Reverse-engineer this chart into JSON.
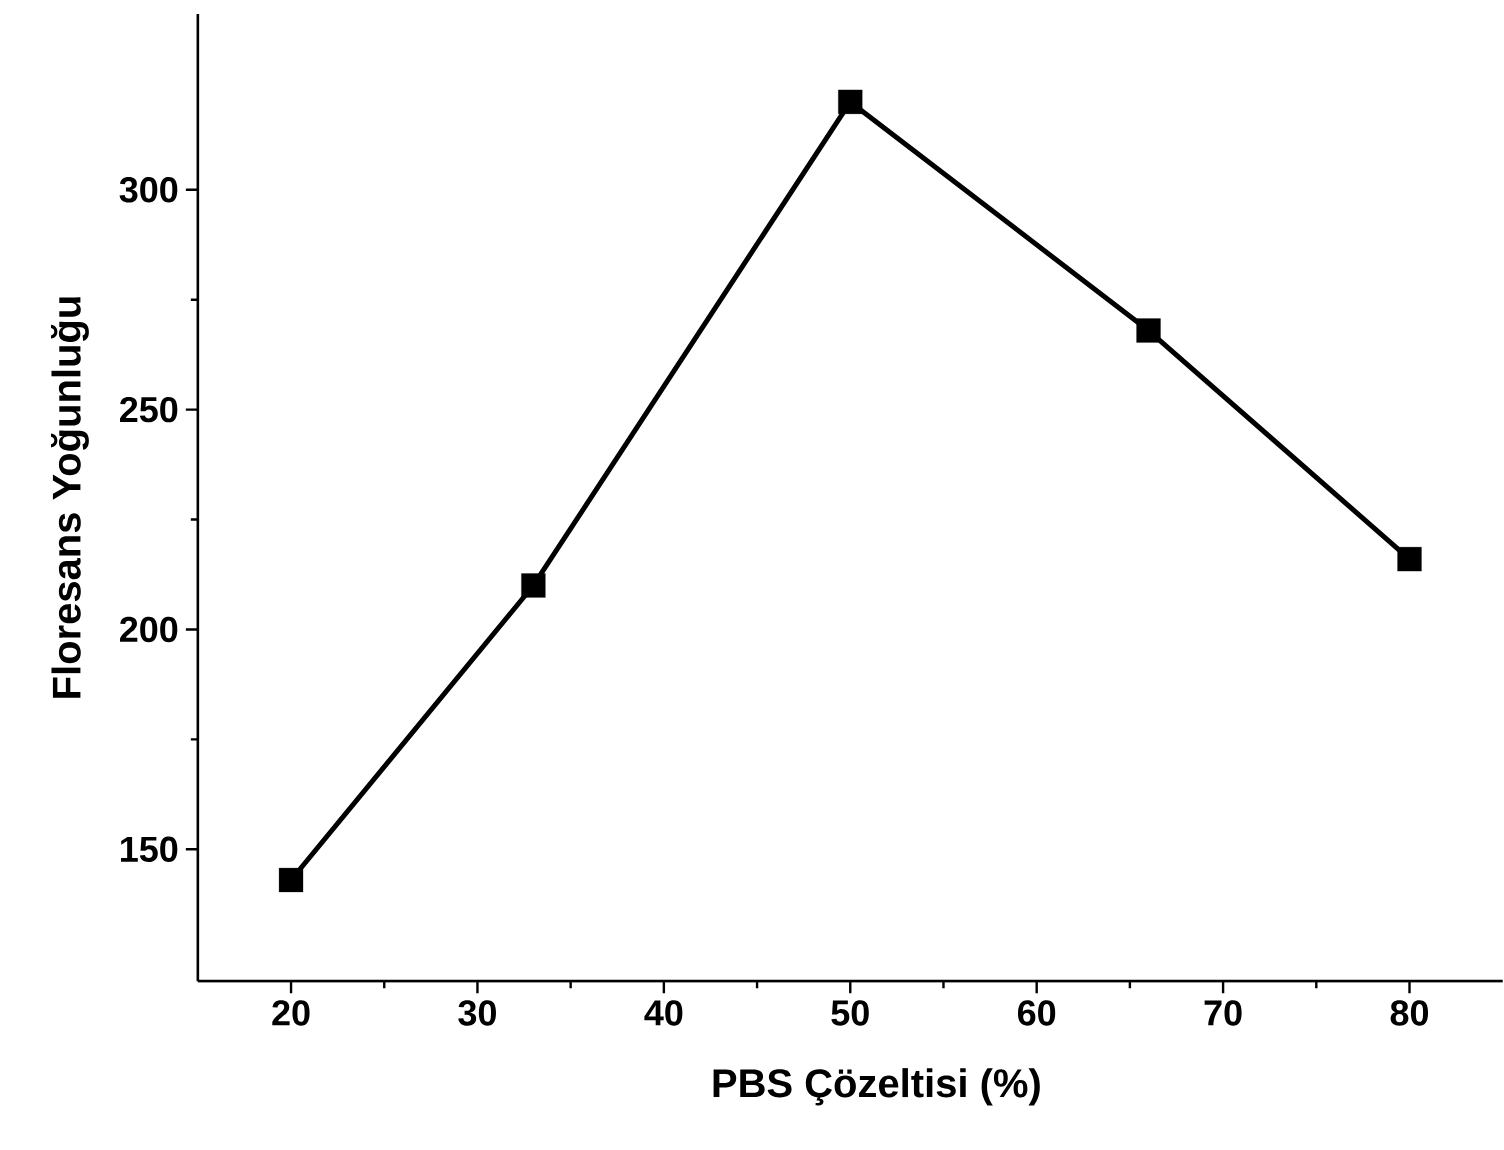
{
  "chart_data": {
    "type": "line",
    "xlabel": "PBS Çözeltisi (%)",
    "ylabel": "Floresans Yoğunluğu",
    "x": [
      20,
      33,
      50,
      66,
      80
    ],
    "series": [
      {
        "color": "#000000",
        "values": [
          143,
          210,
          320,
          268,
          216
        ]
      }
    ],
    "xlim": [
      15,
      85
    ],
    "ylim": [
      120,
      340
    ],
    "xticks": [
      20,
      30,
      40,
      50,
      60,
      70,
      80
    ],
    "yticks": [
      150,
      200,
      250,
      300
    ],
    "marker": "square",
    "line_style": "solid",
    "grid": false
  }
}
